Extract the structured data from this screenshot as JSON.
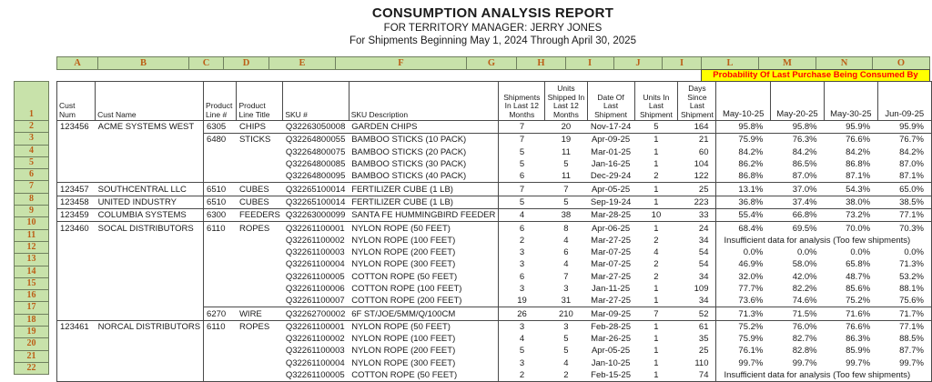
{
  "report": {
    "title": "CONSUMPTION ANALYSIS REPORT",
    "subtitle1": "FOR TERRITORY MANAGER: JERRY JONES",
    "subtitle2": "For Shipments Beginning May 1, 2024 Through April 30, 2025"
  },
  "spreadsheet": {
    "column_letters": [
      "A",
      "B",
      "C",
      "D",
      "E",
      "F",
      "G",
      "H",
      "I",
      "J",
      "I",
      "L",
      "M",
      "N",
      "O"
    ],
    "row_numbers": [
      "1",
      "2",
      "3",
      "4",
      "5",
      "6",
      "7",
      "8",
      "9",
      "10",
      "11",
      "12",
      "13",
      "14",
      "15",
      "16",
      "17",
      "18",
      "19",
      "20",
      "21",
      "22"
    ]
  },
  "colors": {
    "header_fill": "#c8e2aa",
    "header_text": "#bc5e16",
    "banner_fill": "#ffff00",
    "banner_text": "#ff0000"
  },
  "table": {
    "probability_banner": "Probability Of Last Purchase Being Consumed By",
    "insufficient_text": "Insufficient data for analysis (Too few shipments)",
    "headers": {
      "cust_num": "Cust Num",
      "cust_name": "Cust Name",
      "product_line_num": "Product Line #",
      "product_line_title": "Product Line Title",
      "sku": "SKU #",
      "sku_description": "SKU Description",
      "shipments_12mo": "Shipments In Last 12 Months",
      "units_12mo": "Units Shipped In Last 12 Months",
      "date_last_shipment": "Date Of Last Shipment",
      "units_last_shipment": "Units In Last Shipment",
      "days_since": "Days Since Last Shipment",
      "prob_dates": [
        "May-10-25",
        "May-20-25",
        "May-30-25",
        "Jun-09-25"
      ]
    },
    "rows": [
      {
        "num": "2",
        "cust_num": "123456",
        "cust_name": "ACME SYSTEMS WEST",
        "line_num": "6305",
        "line_title": "CHIPS",
        "sku": "Q32263050008",
        "sku_desc": "GARDEN CHIPS",
        "shipments": "7",
        "units": "20",
        "last_date": "Nov-17-24",
        "last_units": "5",
        "days": "164",
        "insufficient": false,
        "probs": [
          "95.8%",
          "95.8%",
          "95.9%",
          "95.9%"
        ],
        "customer_start": true,
        "line_start": true
      },
      {
        "num": "3",
        "cust_num": "",
        "cust_name": "",
        "line_num": "6480",
        "line_title": "STICKS",
        "sku": "Q32264800055",
        "sku_desc": "BAMBOO STICKS (10 PACK)",
        "shipments": "7",
        "units": "19",
        "last_date": "Apr-09-25",
        "last_units": "1",
        "days": "21",
        "insufficient": false,
        "probs": [
          "75.9%",
          "76.3%",
          "76.6%",
          "76.7%"
        ],
        "customer_start": false,
        "line_start": true
      },
      {
        "num": "4",
        "cust_num": "",
        "cust_name": "",
        "line_num": "",
        "line_title": "",
        "sku": "Q32264800075",
        "sku_desc": "BAMBOO STICKS (20 PACK)",
        "shipments": "5",
        "units": "11",
        "last_date": "Mar-01-25",
        "last_units": "1",
        "days": "60",
        "insufficient": false,
        "probs": [
          "84.2%",
          "84.2%",
          "84.2%",
          "84.2%"
        ],
        "customer_start": false,
        "line_start": false
      },
      {
        "num": "5",
        "cust_num": "",
        "cust_name": "",
        "line_num": "",
        "line_title": "",
        "sku": "Q32264800085",
        "sku_desc": "BAMBOO STICKS (30 PACK)",
        "shipments": "5",
        "units": "5",
        "last_date": "Jan-16-25",
        "last_units": "1",
        "days": "104",
        "insufficient": false,
        "probs": [
          "86.2%",
          "86.5%",
          "86.8%",
          "87.0%"
        ],
        "customer_start": false,
        "line_start": false
      },
      {
        "num": "6",
        "cust_num": "",
        "cust_name": "",
        "line_num": "",
        "line_title": "",
        "sku": "Q32264800095",
        "sku_desc": "BAMBOO STICKS (40 PACK)",
        "shipments": "6",
        "units": "11",
        "last_date": "Dec-29-24",
        "last_units": "2",
        "days": "122",
        "insufficient": false,
        "probs": [
          "86.8%",
          "87.0%",
          "87.1%",
          "87.1%"
        ],
        "customer_start": false,
        "line_start": false
      },
      {
        "num": "7",
        "cust_num": "123457",
        "cust_name": "SOUTHCENTRAL LLC",
        "line_num": "6510",
        "line_title": "CUBES",
        "sku": "Q32265100014",
        "sku_desc": "FERTILIZER CUBE (1 LB)",
        "shipments": "7",
        "units": "7",
        "last_date": "Apr-05-25",
        "last_units": "1",
        "days": "25",
        "insufficient": false,
        "probs": [
          "13.1%",
          "37.0%",
          "54.3%",
          "65.0%"
        ],
        "customer_start": true,
        "line_start": true
      },
      {
        "num": "8",
        "cust_num": "123458",
        "cust_name": "UNITED INDUSTRY",
        "line_num": "6510",
        "line_title": "CUBES",
        "sku": "Q32265100014",
        "sku_desc": "FERTILIZER CUBE (1 LB)",
        "shipments": "5",
        "units": "5",
        "last_date": "Sep-19-24",
        "last_units": "1",
        "days": "223",
        "insufficient": false,
        "probs": [
          "36.8%",
          "37.4%",
          "38.0%",
          "38.5%"
        ],
        "customer_start": true,
        "line_start": true
      },
      {
        "num": "9",
        "cust_num": "123459",
        "cust_name": "COLUMBIA SYSTEMS",
        "line_num": "6300",
        "line_title": "FEEDERS",
        "sku": "Q32263000099",
        "sku_desc": "SANTA FE HUMMINGBIRD FEEDER",
        "shipments": "4",
        "units": "38",
        "last_date": "Mar-28-25",
        "last_units": "10",
        "days": "33",
        "insufficient": false,
        "probs": [
          "55.4%",
          "66.8%",
          "73.2%",
          "77.1%"
        ],
        "customer_start": true,
        "line_start": true
      },
      {
        "num": "10",
        "cust_num": "123460",
        "cust_name": "SOCAL DISTRIBUTORS",
        "line_num": "6110",
        "line_title": "ROPES",
        "sku": "Q32261100001",
        "sku_desc": "NYLON ROPE (50 FEET)",
        "shipments": "6",
        "units": "8",
        "last_date": "Apr-06-25",
        "last_units": "1",
        "days": "24",
        "insufficient": false,
        "probs": [
          "68.4%",
          "69.5%",
          "70.0%",
          "70.3%"
        ],
        "customer_start": true,
        "line_start": true
      },
      {
        "num": "11",
        "cust_num": "",
        "cust_name": "",
        "line_num": "",
        "line_title": "",
        "sku": "Q32261100002",
        "sku_desc": "NYLON ROPE (100 FEET)",
        "shipments": "2",
        "units": "4",
        "last_date": "Mar-27-25",
        "last_units": "2",
        "days": "34",
        "insufficient": true,
        "probs": null,
        "customer_start": false,
        "line_start": false
      },
      {
        "num": "12",
        "cust_num": "",
        "cust_name": "",
        "line_num": "",
        "line_title": "",
        "sku": "Q32261100003",
        "sku_desc": "NYLON ROPE (200 FEET)",
        "shipments": "3",
        "units": "6",
        "last_date": "Mar-07-25",
        "last_units": "4",
        "days": "54",
        "insufficient": false,
        "probs": [
          "0.0%",
          "0.0%",
          "0.0%",
          "0.0%"
        ],
        "customer_start": false,
        "line_start": false
      },
      {
        "num": "13",
        "cust_num": "",
        "cust_name": "",
        "line_num": "",
        "line_title": "",
        "sku": "Q32261100004",
        "sku_desc": "NYLON ROPE (300 FEET)",
        "shipments": "3",
        "units": "4",
        "last_date": "Mar-07-25",
        "last_units": "2",
        "days": "54",
        "insufficient": false,
        "probs": [
          "46.9%",
          "58.0%",
          "65.8%",
          "71.3%"
        ],
        "customer_start": false,
        "line_start": false
      },
      {
        "num": "14",
        "cust_num": "",
        "cust_name": "",
        "line_num": "",
        "line_title": "",
        "sku": "Q32261100005",
        "sku_desc": "COTTON ROPE (50 FEET)",
        "shipments": "6",
        "units": "7",
        "last_date": "Mar-27-25",
        "last_units": "2",
        "days": "34",
        "insufficient": false,
        "probs": [
          "32.0%",
          "42.0%",
          "48.7%",
          "53.2%"
        ],
        "customer_start": false,
        "line_start": false
      },
      {
        "num": "15",
        "cust_num": "",
        "cust_name": "",
        "line_num": "",
        "line_title": "",
        "sku": "Q32261100006",
        "sku_desc": "COTTON ROPE (100 FEET)",
        "shipments": "3",
        "units": "3",
        "last_date": "Jan-11-25",
        "last_units": "1",
        "days": "109",
        "insufficient": false,
        "probs": [
          "77.7%",
          "82.2%",
          "85.6%",
          "88.1%"
        ],
        "customer_start": false,
        "line_start": false
      },
      {
        "num": "16",
        "cust_num": "",
        "cust_name": "",
        "line_num": "",
        "line_title": "",
        "sku": "Q32261100007",
        "sku_desc": "COTTON ROPE (200 FEET)",
        "shipments": "19",
        "units": "31",
        "last_date": "Mar-27-25",
        "last_units": "1",
        "days": "34",
        "insufficient": false,
        "probs": [
          "73.6%",
          "74.6%",
          "75.2%",
          "75.6%"
        ],
        "customer_start": false,
        "line_start": false
      },
      {
        "num": "17",
        "cust_num": "",
        "cust_name": "",
        "line_num": "6270",
        "line_title": "WIRE",
        "sku": "Q32262700002",
        "sku_desc": "6F ST/JOE/5MM/Q/100CM",
        "shipments": "26",
        "units": "210",
        "last_date": "Mar-09-25",
        "last_units": "7",
        "days": "52",
        "insufficient": false,
        "probs": [
          "71.3%",
          "71.5%",
          "71.6%",
          "71.7%"
        ],
        "customer_start": false,
        "line_start": true
      },
      {
        "num": "18",
        "cust_num": "123461",
        "cust_name": "NORCAL DISTRIBUTORS",
        "line_num": "6110",
        "line_title": "ROPES",
        "sku": "Q32261100001",
        "sku_desc": "NYLON ROPE (50 FEET)",
        "shipments": "3",
        "units": "3",
        "last_date": "Feb-28-25",
        "last_units": "1",
        "days": "61",
        "insufficient": false,
        "probs": [
          "75.2%",
          "76.0%",
          "76.6%",
          "77.1%"
        ],
        "customer_start": true,
        "line_start": true
      },
      {
        "num": "19",
        "cust_num": "",
        "cust_name": "",
        "line_num": "",
        "line_title": "",
        "sku": "Q32261100002",
        "sku_desc": "NYLON ROPE (100 FEET)",
        "shipments": "4",
        "units": "5",
        "last_date": "Mar-26-25",
        "last_units": "1",
        "days": "35",
        "insufficient": false,
        "probs": [
          "75.9%",
          "82.7%",
          "86.3%",
          "88.5%"
        ],
        "customer_start": false,
        "line_start": false
      },
      {
        "num": "20",
        "cust_num": "",
        "cust_name": "",
        "line_num": "",
        "line_title": "",
        "sku": "Q32261100003",
        "sku_desc": "NYLON ROPE (200 FEET)",
        "shipments": "5",
        "units": "5",
        "last_date": "Apr-05-25",
        "last_units": "1",
        "days": "25",
        "insufficient": false,
        "probs": [
          "76.1%",
          "82.8%",
          "85.9%",
          "87.7%"
        ],
        "customer_start": false,
        "line_start": false
      },
      {
        "num": "21",
        "cust_num": "",
        "cust_name": "",
        "line_num": "",
        "line_title": "",
        "sku": "Q32261100004",
        "sku_desc": "NYLON ROPE (300 FEET)",
        "shipments": "3",
        "units": "4",
        "last_date": "Jan-10-25",
        "last_units": "1",
        "days": "110",
        "insufficient": false,
        "probs": [
          "99.7%",
          "99.7%",
          "99.7%",
          "99.7%"
        ],
        "customer_start": false,
        "line_start": false
      },
      {
        "num": "22",
        "cust_num": "",
        "cust_name": "",
        "line_num": "",
        "line_title": "",
        "sku": "Q32261100005",
        "sku_desc": "COTTON ROPE (50 FEET)",
        "shipments": "2",
        "units": "2",
        "last_date": "Feb-15-25",
        "last_units": "1",
        "days": "74",
        "insufficient": true,
        "probs": null,
        "customer_start": false,
        "line_start": false
      }
    ]
  }
}
